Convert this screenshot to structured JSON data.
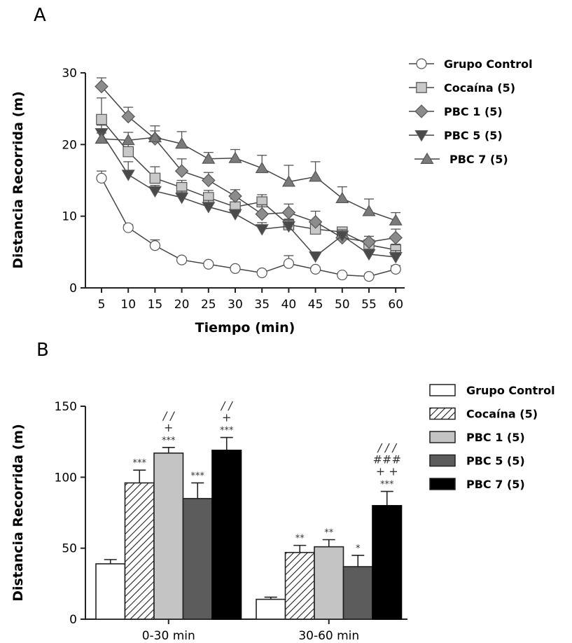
{
  "chart_data": [
    {
      "panel": "A",
      "type": "line",
      "xlabel": "Tiempo (min)",
      "ylabel": "Distancia Recorrida (m)",
      "x": [
        5,
        10,
        15,
        20,
        25,
        30,
        35,
        40,
        45,
        50,
        55,
        60
      ],
      "xticks": [
        "5",
        "10",
        "15",
        "20",
        "25",
        "30",
        "35",
        "40",
        "45",
        "50",
        "55",
        "60"
      ],
      "ylim": [
        0,
        30
      ],
      "yticks": [
        0,
        10,
        20,
        30
      ],
      "legend_position": "right",
      "series": [
        {
          "name": "Grupo Control",
          "marker": "circle",
          "fill": "#ffffff",
          "values": [
            15.3,
            8.4,
            5.9,
            3.9,
            3.3,
            2.7,
            2.1,
            3.4,
            2.6,
            1.8,
            1.6,
            2.6
          ],
          "errors": [
            1.0,
            0.4,
            0.8,
            0.3,
            0.3,
            0.3,
            0.3,
            1.1,
            0.3,
            0.3,
            0.3,
            0.5
          ]
        },
        {
          "name": "Cocaína (5)",
          "marker": "square",
          "fill": "#c8c8c8",
          "values": [
            23.5,
            19.0,
            15.3,
            14.0,
            12.6,
            11.3,
            12.0,
            8.8,
            8.2,
            7.8,
            6.0,
            5.3
          ],
          "errors": [
            3.0,
            1.0,
            1.6,
            1.0,
            1.0,
            1.1,
            1.0,
            0.8,
            1.0,
            0.6,
            0.6,
            0.8
          ]
        },
        {
          "name": "PBC 1 (5)",
          "marker": "diamond",
          "fill": "#8c8c8c",
          "values": [
            28.1,
            23.9,
            20.8,
            16.3,
            15.0,
            12.8,
            10.3,
            10.5,
            9.2,
            7.0,
            6.4,
            7.0
          ],
          "errors": [
            1.2,
            1.3,
            1.1,
            1.7,
            1.1,
            0.9,
            1.3,
            1.2,
            1.5,
            0.9,
            0.8,
            1.2
          ]
        },
        {
          "name": "PBC 5 (5)",
          "marker": "triangle-down",
          "fill": "#4a4a4a",
          "values": [
            21.6,
            15.8,
            13.5,
            12.6,
            11.3,
            10.3,
            8.2,
            8.6,
            4.4,
            7.3,
            4.7,
            4.3
          ],
          "errors": [
            1.1,
            1.8,
            0.8,
            0.9,
            0.9,
            0.6,
            0.9,
            0.8,
            0.6,
            0.8,
            0.7,
            0.9
          ]
        },
        {
          "name": "PBC 7 (5)",
          "marker": "triangle-up",
          "fill": "#7a7a7a",
          "values": [
            20.8,
            20.6,
            21.0,
            20.1,
            18.0,
            18.1,
            16.7,
            14.8,
            15.5,
            12.5,
            10.7,
            9.4
          ],
          "errors": [
            0.8,
            1.1,
            1.6,
            1.7,
            0.9,
            1.2,
            1.8,
            2.3,
            2.1,
            1.6,
            1.7,
            1.1
          ]
        }
      ]
    },
    {
      "panel": "B",
      "type": "bar",
      "ylabel": "Distancia Recorrida (m)",
      "categories": [
        "0-30 min",
        "30-60 min"
      ],
      "ylim": [
        0,
        150
      ],
      "yticks": [
        0,
        50,
        100,
        150
      ],
      "legend_position": "right",
      "series": [
        {
          "name": "Grupo Control",
          "fill": "#ffffff",
          "pattern": "none",
          "values": [
            39,
            14
          ],
          "errors": [
            3,
            1.5
          ],
          "annotations": [
            [],
            []
          ]
        },
        {
          "name": "Cocaína (5)",
          "fill": "#ffffff",
          "pattern": "hatch",
          "values": [
            96,
            47
          ],
          "errors": [
            9,
            5
          ],
          "annotations": [
            [
              "***"
            ],
            [
              "**"
            ]
          ]
        },
        {
          "name": "PBC 1 (5)",
          "fill": "#c4c4c4",
          "pattern": "none",
          "values": [
            117,
            51
          ],
          "errors": [
            4,
            5
          ],
          "annotations": [
            [
              "/ /",
              "+",
              "***"
            ],
            [
              "**"
            ]
          ]
        },
        {
          "name": "PBC 5 (5)",
          "fill": "#5c5c5c",
          "pattern": "none",
          "values": [
            85,
            37
          ],
          "errors": [
            11,
            8
          ],
          "annotations": [
            [
              "***"
            ],
            [
              "*"
            ]
          ]
        },
        {
          "name": "PBC 7 (5)",
          "fill": "#000000",
          "pattern": "none",
          "values": [
            119,
            80
          ],
          "errors": [
            9,
            10
          ],
          "annotations": [
            [
              "/ /",
              "+",
              "***"
            ],
            [
              "/ / /",
              "###",
              "+ +",
              "***"
            ]
          ]
        }
      ]
    }
  ]
}
